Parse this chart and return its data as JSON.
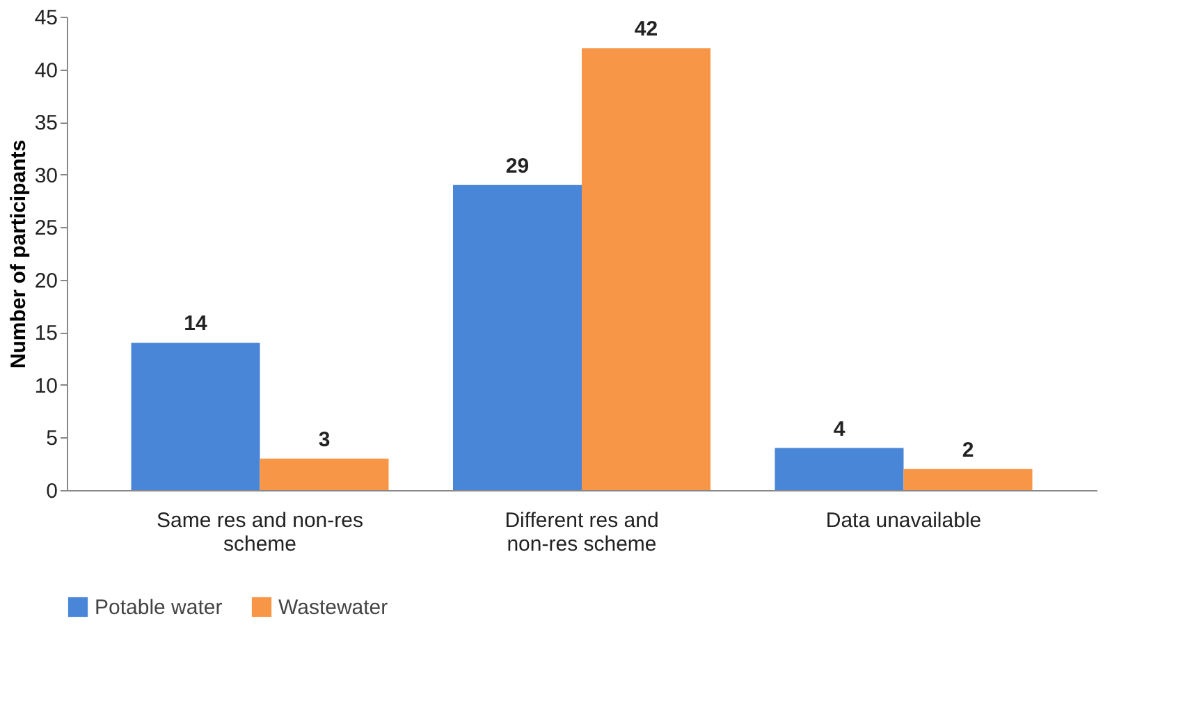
{
  "chart_data": {
    "type": "bar",
    "ylabel": "Number of participants",
    "categories": [
      "Same res and non-res scheme",
      "Different res and non-res scheme",
      "Data unavailable"
    ],
    "series": [
      {
        "name": "Potable water",
        "color": "#4a86d8",
        "values": [
          14,
          29,
          4
        ]
      },
      {
        "name": "Wastewater",
        "color": "#f79646",
        "values": [
          3,
          42,
          2
        ]
      }
    ],
    "ylim": [
      0,
      45
    ],
    "yticks": [
      0,
      5,
      10,
      15,
      20,
      25,
      30,
      35,
      40,
      45
    ],
    "data_labels": true,
    "grid": false,
    "legend": "bottom left"
  }
}
